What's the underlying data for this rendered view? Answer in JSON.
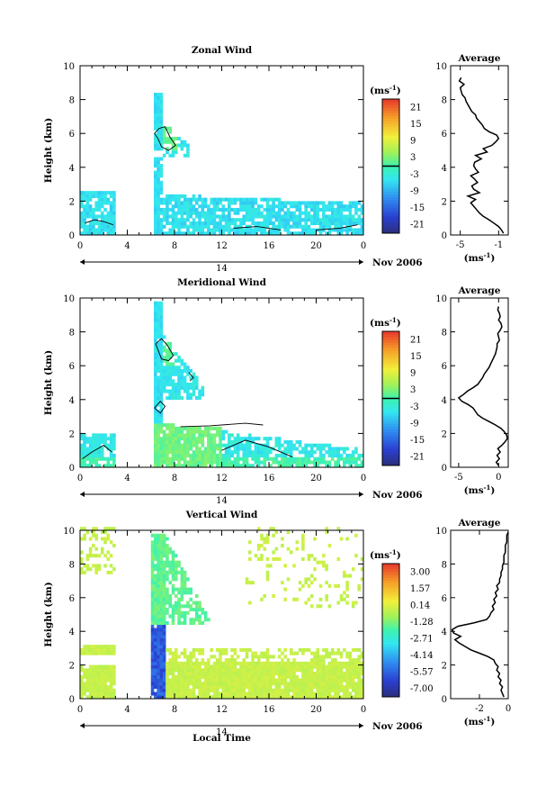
{
  "chart_data": [
    {
      "type": "heatmap",
      "title": "Zonal Wind",
      "ylabel": "Height (km)",
      "ylim": [
        0,
        10
      ],
      "xlim": [
        0,
        24
      ],
      "x_ticks": [
        "0",
        "4",
        "8",
        "12",
        "16",
        "20",
        "0"
      ],
      "y_ticks": [
        "0",
        "2",
        "4",
        "6",
        "8",
        "10"
      ],
      "date_label": "14",
      "month_label": "Nov 2006",
      "colorbar": {
        "unit_label": "(ms",
        "unit_exp": "-1",
        "unit_close": ")",
        "ticks": [
          "21",
          "15",
          "9",
          "3",
          "-3",
          "-9",
          "-15",
          "-21"
        ],
        "range": [
          -24,
          24
        ],
        "zero_line": true
      },
      "average_profile": {
        "title": "Average",
        "xlabel": "(ms",
        "xlabel_exp": "-1",
        "xlabel_close": ")",
        "x_ticks": [
          "-5",
          "-1"
        ],
        "xlim": [
          -6,
          0
        ],
        "x_tick_values": [
          -5,
          -1
        ],
        "height": [
          0.1,
          0.3,
          0.5,
          0.7,
          0.9,
          1.1,
          1.3,
          1.5,
          1.7,
          1.9,
          2.1,
          2.3,
          2.5,
          2.7,
          2.9,
          3.1,
          3.3,
          3.5,
          3.7,
          3.9,
          4.1,
          4.3,
          4.5,
          4.7,
          4.9,
          5.1,
          5.3,
          5.5,
          5.7,
          5.9,
          6.1,
          6.3,
          6.5,
          6.7,
          6.9,
          7.1,
          7.3,
          7.5,
          7.7,
          7.9,
          8.1,
          8.3,
          8.5,
          8.7,
          8.9,
          9.1,
          9.3
        ],
        "values": [
          -0.5,
          -0.7,
          -1.0,
          -1.5,
          -2.0,
          -2.6,
          -3.0,
          -3.3,
          -3.6,
          -3.9,
          -3.4,
          -4.2,
          -3.0,
          -3.6,
          -3.8,
          -3.2,
          -3.5,
          -3.9,
          -3.1,
          -3.4,
          -3.6,
          -3.5,
          -2.8,
          -3.4,
          -2.2,
          -2.6,
          -1.7,
          -1.3,
          -1.0,
          -1.2,
          -2.0,
          -2.5,
          -2.7,
          -3.0,
          -3.3,
          -3.4,
          -3.8,
          -4.0,
          -4.2,
          -4.4,
          -4.5,
          -4.8,
          -4.9,
          -5.0,
          -4.6,
          -5.1,
          -4.9
        ]
      },
      "gaps": [
        [
          3.0,
          6.2
        ]
      ],
      "contour_level": 0
    },
    {
      "type": "heatmap",
      "title": "Meridional Wind",
      "ylabel": "Height (km)",
      "ylim": [
        0,
        10
      ],
      "xlim": [
        0,
        24
      ],
      "x_ticks": [
        "0",
        "4",
        "8",
        "12",
        "16",
        "20",
        "0"
      ],
      "y_ticks": [
        "0",
        "2",
        "4",
        "6",
        "8",
        "10"
      ],
      "date_label": "14",
      "month_label": "Nov 2006",
      "colorbar": {
        "unit_label": "(ms",
        "unit_exp": "-1",
        "unit_close": ")",
        "ticks": [
          "21",
          "15",
          "9",
          "3",
          "-3",
          "-9",
          "-15",
          "-21"
        ],
        "range": [
          -24,
          24
        ],
        "zero_line": true
      },
      "average_profile": {
        "title": "Average",
        "xlabel": "(ms",
        "xlabel_exp": "-1",
        "xlabel_close": ")",
        "x_ticks": [
          "-5",
          "0"
        ],
        "xlim": [
          -6,
          1.2
        ],
        "x_tick_values": [
          -5,
          0
        ],
        "height": [
          0.1,
          0.3,
          0.5,
          0.7,
          0.9,
          1.1,
          1.3,
          1.5,
          1.7,
          1.9,
          2.1,
          2.3,
          2.5,
          2.7,
          2.9,
          3.1,
          3.3,
          3.5,
          3.7,
          3.9,
          4.1,
          4.3,
          4.5,
          4.7,
          4.9,
          5.1,
          5.3,
          5.5,
          5.7,
          5.9,
          6.1,
          6.3,
          6.5,
          6.7,
          6.9,
          7.1,
          7.3,
          7.5,
          7.7,
          7.9,
          8.1,
          8.3,
          8.5,
          8.7,
          8.9,
          9.1,
          9.3,
          9.5
        ],
        "values": [
          0.0,
          -0.3,
          0.1,
          -0.2,
          0.2,
          -0.1,
          0.4,
          0.8,
          1.1,
          1.0,
          0.7,
          0.3,
          -0.4,
          -1.2,
          -2.0,
          -2.6,
          -2.9,
          -3.2,
          -3.8,
          -4.6,
          -5.0,
          -4.4,
          -3.9,
          -3.2,
          -2.6,
          -2.3,
          -2.0,
          -1.8,
          -1.5,
          -1.2,
          -1.0,
          -0.8,
          -0.6,
          -0.4,
          -0.3,
          -0.2,
          -0.2,
          0.1,
          0.0,
          -0.1,
          0.2,
          0.4,
          0.3,
          0.0,
          0.2,
          0.1,
          -0.1,
          0.0
        ]
      },
      "gaps": [
        [
          3.0,
          6.2
        ]
      ],
      "contour_level": 0
    },
    {
      "type": "heatmap",
      "title": "Vertical Wind",
      "ylabel": "Height (km)",
      "xlabel": "Local Time",
      "ylim": [
        0,
        10
      ],
      "xlim": [
        0,
        24
      ],
      "x_ticks": [
        "0",
        "4",
        "8",
        "12",
        "16",
        "20",
        "0"
      ],
      "y_ticks": [
        "0",
        "2",
        "4",
        "6",
        "8",
        "10"
      ],
      "date_label": "14",
      "month_label": "Nov 2006",
      "colorbar": {
        "unit_label": "(ms",
        "unit_exp": "-1",
        "unit_close": ")",
        "ticks": [
          "3.00",
          "1.57",
          "0.14",
          "-1.28",
          "-2.71",
          "-4.14",
          "-5.57",
          "-7.00"
        ],
        "range": [
          -7.7,
          3.7
        ],
        "zero_line": false
      },
      "average_profile": {
        "title": "Average",
        "xlabel": "(ms",
        "xlabel_exp": "-1",
        "xlabel_close": ")",
        "x_ticks": [
          "-2",
          "0"
        ],
        "xlim": [
          -4,
          0
        ],
        "x_tick_values": [
          -2,
          0
        ],
        "height": [
          0.1,
          0.3,
          0.5,
          0.7,
          0.9,
          1.1,
          1.3,
          1.5,
          1.7,
          1.9,
          2.1,
          2.3,
          2.5,
          2.7,
          2.9,
          3.1,
          3.3,
          3.5,
          3.7,
          3.9,
          4.1,
          4.3,
          4.5,
          4.7,
          4.9,
          5.1,
          5.3,
          5.5,
          5.7,
          5.9,
          6.1,
          6.3,
          6.5,
          6.7,
          6.9,
          7.1,
          7.3,
          7.5,
          7.7,
          7.9,
          8.1,
          8.3,
          8.5,
          8.7,
          8.9,
          9.1,
          9.3,
          9.5,
          9.7,
          9.9
        ],
        "values": [
          -0.3,
          -0.4,
          -0.5,
          -0.4,
          -0.6,
          -0.5,
          -0.7,
          -0.6,
          -0.8,
          -0.7,
          -0.9,
          -1.0,
          -1.4,
          -2.0,
          -2.6,
          -3.0,
          -3.4,
          -3.7,
          -3.3,
          -3.8,
          -3.9,
          -3.5,
          -2.4,
          -1.5,
          -1.3,
          -1.2,
          -1.0,
          -1.1,
          -0.9,
          -1.0,
          -0.8,
          -0.9,
          -0.7,
          -0.8,
          -0.6,
          -0.6,
          -0.5,
          -0.5,
          -0.4,
          -0.4,
          -0.3,
          -0.3,
          -0.3,
          -0.2,
          -0.2,
          -0.2,
          -0.1,
          -0.1,
          -0.1,
          0.0
        ]
      },
      "gaps": [
        [
          3.0,
          6.0
        ]
      ]
    }
  ]
}
